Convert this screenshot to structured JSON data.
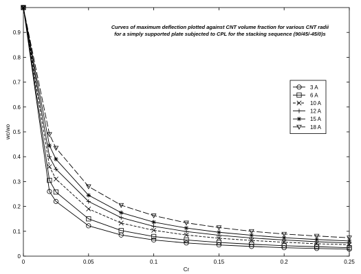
{
  "chart_data": {
    "type": "line",
    "title": [
      "Curves of maximum deflection plotted against CNT volume fraction for various CNT radii",
      "for a simply supported plate subjected to CPL for the stacking sequence (90/45/-45/0)s"
    ],
    "xlabel": "Cr",
    "ylabel": "wc/wo",
    "xlim": [
      0,
      0.25
    ],
    "ylim": [
      0,
      1
    ],
    "xticks": [
      0,
      0.05,
      0.1,
      0.15,
      0.2,
      0.25
    ],
    "xtick_labels": [
      "0",
      "0.05",
      "0.1",
      "0.15",
      "0.2",
      "0.25"
    ],
    "yticks": [
      0,
      0.1,
      0.2,
      0.3,
      0.4,
      0.5,
      0.6,
      0.7,
      0.8,
      0.9
    ],
    "ytick_labels": [
      "0",
      "0.1",
      "0.2",
      "0.3",
      "0.4",
      "0.5",
      "0.6",
      "0.7",
      "0.8",
      "0.9"
    ],
    "grid": false,
    "legend_position": "right",
    "x": [
      0,
      0.02,
      0.025,
      0.05,
      0.075,
      0.1,
      0.125,
      0.15,
      0.175,
      0.2,
      0.225,
      0.25
    ],
    "series": [
      {
        "name": "3 A",
        "marker": "circle",
        "dash": "solid",
        "values": [
          1,
          0.26,
          0.22,
          0.122,
          0.085,
          0.065,
          0.053,
          0.045,
          0.039,
          0.034,
          0.031,
          0.028
        ]
      },
      {
        "name": "6 A",
        "marker": "square",
        "dash": "solid",
        "values": [
          1,
          0.305,
          0.258,
          0.15,
          0.103,
          0.079,
          0.065,
          0.055,
          0.048,
          0.042,
          0.038,
          0.034
        ]
      },
      {
        "name": "10 A",
        "marker": "x",
        "dash": "dashed",
        "values": [
          1,
          0.36,
          0.31,
          0.19,
          0.133,
          0.104,
          0.085,
          0.072,
          0.063,
          0.056,
          0.05,
          0.046
        ]
      },
      {
        "name": "12 A",
        "marker": "plus",
        "dash": "solid",
        "values": [
          1,
          0.4,
          0.35,
          0.22,
          0.155,
          0.12,
          0.099,
          0.084,
          0.073,
          0.065,
          0.058,
          0.053
        ]
      },
      {
        "name": "15 A",
        "marker": "star",
        "dash": "solid",
        "values": [
          1,
          0.445,
          0.39,
          0.245,
          0.175,
          0.137,
          0.113,
          0.096,
          0.084,
          0.074,
          0.067,
          0.061
        ]
      },
      {
        "name": "18 A",
        "marker": "triangle-down",
        "dash": "longdash",
        "values": [
          1,
          0.49,
          0.435,
          0.28,
          0.205,
          0.163,
          0.134,
          0.115,
          0.1,
          0.089,
          0.081,
          0.074
        ]
      }
    ]
  }
}
